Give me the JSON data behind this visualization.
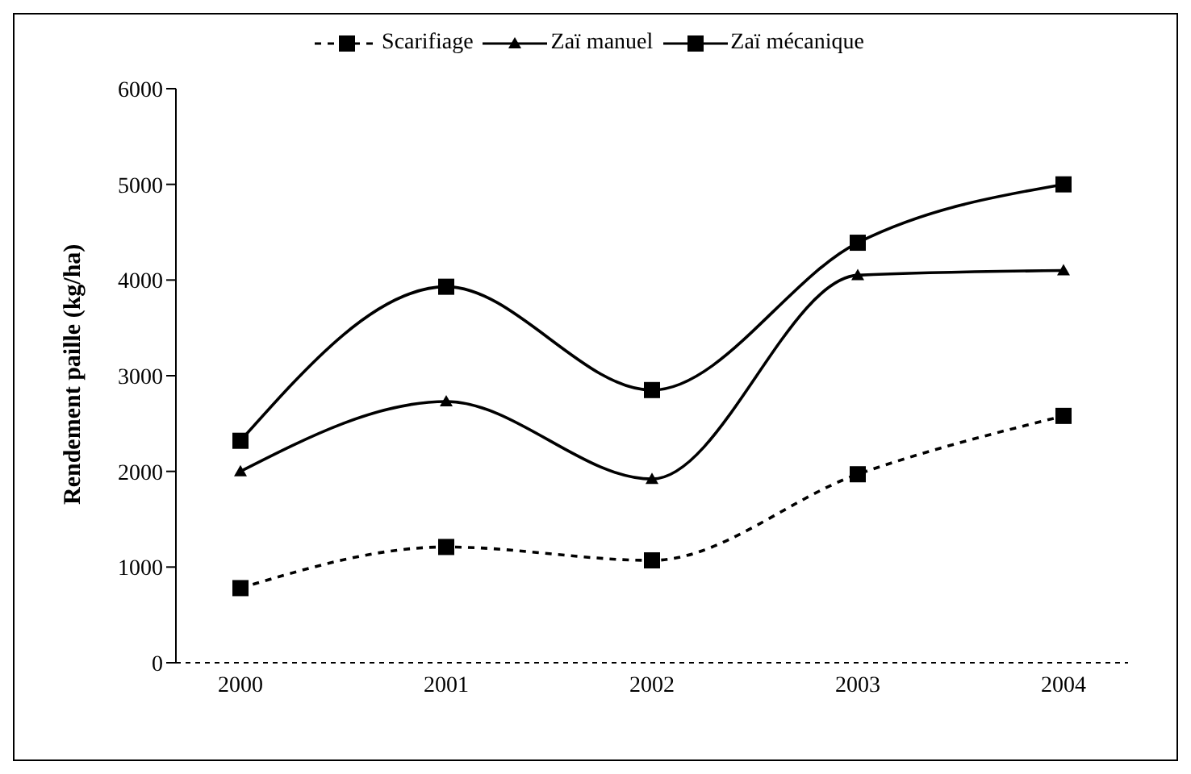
{
  "chart_data": {
    "type": "line",
    "ylabel": "Rendement paille (kg/ha)",
    "categories": [
      "2000",
      "2001",
      "2002",
      "2003",
      "2004"
    ],
    "series": [
      {
        "name": "Scarifiage",
        "color": "#000000",
        "values": [
          780,
          1210,
          1070,
          1970,
          2580
        ],
        "marker": "square",
        "line_style": "dashed"
      },
      {
        "name": "Zaï manuel",
        "color": "#000000",
        "values": [
          2000,
          2730,
          1920,
          4050,
          4100
        ],
        "marker": "triangle",
        "line_style": "solid"
      },
      {
        "name": "Zaï mécanique",
        "color": "#000000",
        "values": [
          2320,
          3930,
          2850,
          4390,
          5000
        ],
        "marker": "square",
        "line_style": "solid"
      }
    ],
    "ylim": [
      0,
      6000
    ],
    "yticks": [
      0,
      1000,
      2000,
      3000,
      4000,
      5000,
      6000
    ],
    "grid": false,
    "legend": "top"
  }
}
